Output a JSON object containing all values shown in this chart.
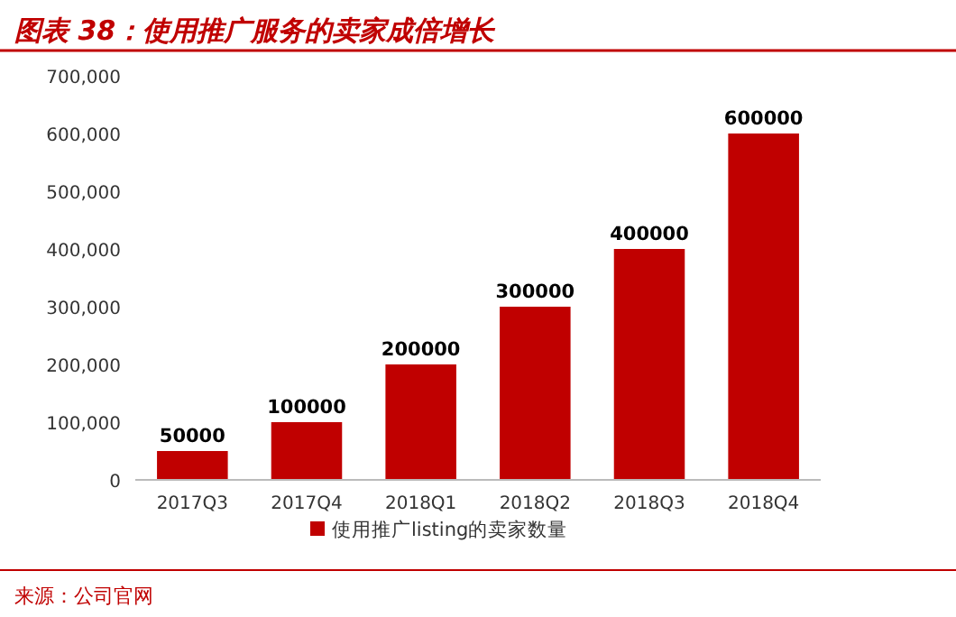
{
  "chart_data": {
    "type": "bar",
    "title": "图表 38：使用推广服务的卖家成倍增长",
    "categories": [
      "2017Q3",
      "2017Q4",
      "2018Q1",
      "2018Q2",
      "2018Q3",
      "2018Q4"
    ],
    "series": [
      {
        "name": "使用推广listing的卖家数量",
        "color": "#c00000",
        "values": [
          50000,
          100000,
          200000,
          300000,
          400000,
          600000
        ]
      }
    ],
    "ylim": [
      0,
      700000
    ],
    "yticks": [
      {
        "value": 0,
        "label": "0"
      },
      {
        "value": 100000,
        "label": "100,000"
      },
      {
        "value": 200000,
        "label": "200,000"
      },
      {
        "value": 300000,
        "label": "300,000"
      },
      {
        "value": 400000,
        "label": "400,000"
      },
      {
        "value": 500000,
        "label": "500,000"
      },
      {
        "value": 600000,
        "label": "600,000"
      },
      {
        "value": 700000,
        "label": "700,000"
      }
    ],
    "data_labels": true,
    "legend": "bottom",
    "annotations": [
      "来源：公司官网"
    ]
  }
}
